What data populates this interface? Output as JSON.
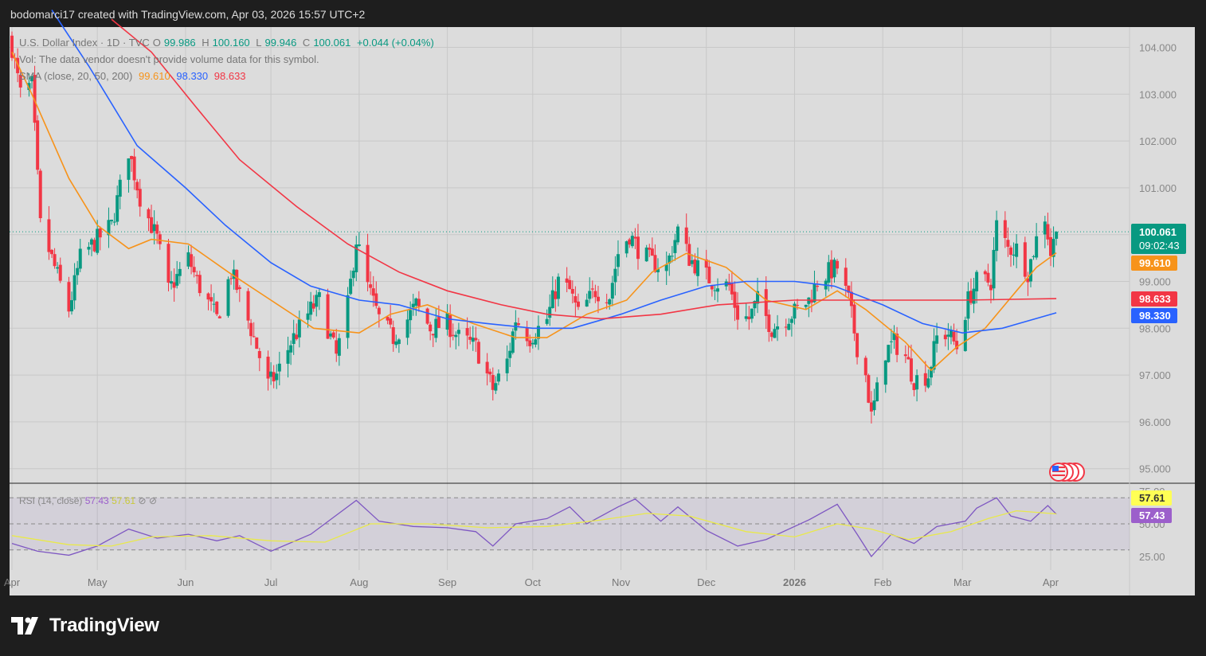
{
  "header": {
    "attribution": "bodomarci17 created with TradingView.com, Apr 03, 2026 15:57 UTC+2"
  },
  "legend": {
    "symbol": "U.S. Dollar Index · 1D · TVC",
    "o_label": "O",
    "o_value": "99.986",
    "h_label": "H",
    "h_value": "100.160",
    "l_label": "L",
    "l_value": "99.946",
    "c_label": "C",
    "c_value": "100.061",
    "change": "+0.044 (+0.04%)",
    "vol_text": "Vol: The data vendor doesn't provide volume data for this symbol.",
    "sma_label": "SMA (close, 20, 50, 200)",
    "sma20": "99.610",
    "sma50": "98.330",
    "sma200": "98.633"
  },
  "price_badges": {
    "last": "100.061",
    "countdown": "09:02:43",
    "sma20": "99.610",
    "sma200": "98.633",
    "sma50": "98.330"
  },
  "rsi_legend": {
    "label": "RSI (14, close)",
    "rsi": "57.43",
    "ma": "57.61",
    "extra": "⊘ ⊘"
  },
  "rsi_badges": {
    "ma": "57.61",
    "rsi": "57.43"
  },
  "footer": {
    "brand": "TradingView"
  },
  "colors": {
    "up": "#089981",
    "down": "#f23645",
    "sma20": "#f7931a",
    "sma50": "#2962ff",
    "sma200": "#f23645",
    "rsi": "#7e57c2",
    "rsi_ma": "#e9e94a",
    "bg": "#dcdcdc"
  },
  "chart_data": [
    {
      "type": "candlestick",
      "title": "U.S. Dollar Index · 1D · TVC",
      "xlabel": "",
      "ylabel": "",
      "ylim": [
        94.7,
        104.4
      ],
      "y_ticks": [
        "104.000",
        "103.000",
        "102.000",
        "101.000",
        "100.000",
        "99.000",
        "98.000",
        "97.000",
        "96.000",
        "95.000"
      ],
      "x_ticks": [
        "Apr",
        "May",
        "Jun",
        "Jul",
        "Aug",
        "Sep",
        "Oct",
        "Nov",
        "Dec",
        "2026",
        "Feb",
        "Mar",
        "Apr"
      ],
      "last_price": 100.061,
      "anchors_close": [
        [
          "2025-04-01",
          104.0
        ],
        [
          "2025-04-04",
          103.0
        ],
        [
          "2025-04-08",
          103.2
        ],
        [
          "2025-04-10",
          101.2
        ],
        [
          "2025-04-11",
          100.2
        ],
        [
          "2025-04-21",
          98.4
        ],
        [
          "2025-04-25",
          99.5
        ],
        [
          "2025-05-01",
          99.9
        ],
        [
          "2025-05-06",
          100.2
        ],
        [
          "2025-05-12",
          101.8
        ],
        [
          "2025-05-16",
          100.8
        ],
        [
          "2025-05-22",
          99.9
        ],
        [
          "2025-05-26",
          98.8
        ],
        [
          "2025-06-02",
          99.5
        ],
        [
          "2025-06-05",
          99.0
        ],
        [
          "2025-06-12",
          98.2
        ],
        [
          "2025-06-17",
          99.2
        ],
        [
          "2025-06-20",
          98.7
        ],
        [
          "2025-06-25",
          97.8
        ],
        [
          "2025-06-30",
          96.8
        ],
        [
          "2025-07-03",
          97.0
        ],
        [
          "2025-07-08",
          97.7
        ],
        [
          "2025-07-15",
          98.4
        ],
        [
          "2025-07-18",
          98.6
        ],
        [
          "2025-07-24",
          97.4
        ],
        [
          "2025-07-28",
          98.5
        ],
        [
          "2025-07-31",
          99.9
        ],
        [
          "2025-08-04",
          98.9
        ],
        [
          "2025-08-08",
          98.2
        ],
        [
          "2025-08-13",
          97.8
        ],
        [
          "2025-08-18",
          98.2
        ],
        [
          "2025-08-21",
          98.5
        ],
        [
          "2025-08-26",
          98.0
        ],
        [
          "2025-09-01",
          98.1
        ],
        [
          "2025-09-05",
          97.8
        ],
        [
          "2025-09-11",
          97.6
        ],
        [
          "2025-09-17",
          96.7
        ],
        [
          "2025-09-22",
          97.3
        ],
        [
          "2025-09-25",
          98.2
        ],
        [
          "2025-09-30",
          97.8
        ],
        [
          "2025-10-06",
          98.2
        ],
        [
          "2025-10-10",
          99.0
        ],
        [
          "2025-10-14",
          98.8
        ],
        [
          "2025-10-17",
          98.3
        ],
        [
          "2025-10-23",
          98.8
        ],
        [
          "2025-10-28",
          98.7
        ],
        [
          "2025-10-31",
          99.6
        ],
        [
          "2025-11-04",
          100.0
        ],
        [
          "2025-11-07",
          99.7
        ],
        [
          "2025-11-12",
          99.4
        ],
        [
          "2025-11-17",
          99.3
        ],
        [
          "2025-11-21",
          100.1
        ],
        [
          "2025-11-25",
          99.5
        ],
        [
          "2025-11-28",
          99.3
        ],
        [
          "2025-12-03",
          99.0
        ],
        [
          "2025-12-09",
          98.9
        ],
        [
          "2025-12-12",
          98.3
        ],
        [
          "2025-12-16",
          98.2
        ],
        [
          "2025-12-19",
          98.6
        ],
        [
          "2025-12-24",
          98.0
        ],
        [
          "2025-12-31",
          98.3
        ],
        [
          "2026-01-06",
          98.6
        ],
        [
          "2026-01-09",
          99.0
        ],
        [
          "2026-01-13",
          99.2
        ],
        [
          "2026-01-16",
          99.3
        ],
        [
          "2026-01-20",
          98.6
        ],
        [
          "2026-01-23",
          97.6
        ],
        [
          "2026-01-26",
          97.0
        ],
        [
          "2026-01-28",
          96.1
        ],
        [
          "2026-02-02",
          97.5
        ],
        [
          "2026-02-05",
          97.7
        ],
        [
          "2026-02-09",
          97.4
        ],
        [
          "2026-02-12",
          96.9
        ],
        [
          "2026-02-17",
          97.0
        ],
        [
          "2026-02-20",
          97.8
        ],
        [
          "2026-02-24",
          97.9
        ],
        [
          "2026-02-27",
          97.6
        ],
        [
          "2026-03-03",
          98.6
        ],
        [
          "2026-03-06",
          99.0
        ],
        [
          "2026-03-11",
          99.0
        ],
        [
          "2026-03-13",
          100.2
        ],
        [
          "2026-03-17",
          99.7
        ],
        [
          "2026-03-20",
          99.7
        ],
        [
          "2026-03-24",
          99.2
        ],
        [
          "2026-03-27",
          99.9
        ],
        [
          "2026-03-30",
          100.4
        ],
        [
          "2026-04-01",
          99.6
        ],
        [
          "2026-04-03",
          100.061
        ]
      ],
      "sma_lines": [
        {
          "name": "SMA 20",
          "color": "#f7931a",
          "points": [
            [
              "2025-04-01",
              103.9
            ],
            [
              "2025-04-08",
              103.0
            ],
            [
              "2025-04-21",
              101.2
            ],
            [
              "2025-05-01",
              100.2
            ],
            [
              "2025-05-12",
              99.7
            ],
            [
              "2025-05-20",
              99.9
            ],
            [
              "2025-06-02",
              99.8
            ],
            [
              "2025-06-16",
              99.2
            ],
            [
              "2025-07-01",
              98.6
            ],
            [
              "2025-07-16",
              98.0
            ],
            [
              "2025-08-01",
              97.9
            ],
            [
              "2025-08-12",
              98.3
            ],
            [
              "2025-08-25",
              98.5
            ],
            [
              "2025-09-10",
              98.1
            ],
            [
              "2025-09-25",
              97.8
            ],
            [
              "2025-10-06",
              97.8
            ],
            [
              "2025-10-20",
              98.3
            ],
            [
              "2025-11-03",
              98.6
            ],
            [
              "2025-11-12",
              99.2
            ],
            [
              "2025-11-24",
              99.6
            ],
            [
              "2025-12-08",
              99.3
            ],
            [
              "2025-12-22",
              98.6
            ],
            [
              "2026-01-05",
              98.4
            ],
            [
              "2026-01-16",
              98.8
            ],
            [
              "2026-01-26",
              98.4
            ],
            [
              "2026-02-09",
              97.7
            ],
            [
              "2026-02-18",
              97.1
            ],
            [
              "2026-02-27",
              97.6
            ],
            [
              "2026-03-09",
              98.0
            ],
            [
              "2026-03-20",
              98.8
            ],
            [
              "2026-03-27",
              99.3
            ],
            [
              "2026-04-03",
              99.61
            ]
          ]
        },
        {
          "name": "SMA 50",
          "color": "#2962ff",
          "points": [
            [
              "2025-04-15",
              104.8
            ],
            [
              "2025-04-28",
              103.6
            ],
            [
              "2025-05-15",
              101.9
            ],
            [
              "2025-06-01",
              101.0
            ],
            [
              "2025-06-15",
              100.2
            ],
            [
              "2025-07-01",
              99.4
            ],
            [
              "2025-07-15",
              98.9
            ],
            [
              "2025-08-01",
              98.6
            ],
            [
              "2025-08-15",
              98.5
            ],
            [
              "2025-09-01",
              98.2
            ],
            [
              "2025-09-15",
              98.1
            ],
            [
              "2025-10-01",
              98.0
            ],
            [
              "2025-10-15",
              98.0
            ],
            [
              "2025-11-01",
              98.3
            ],
            [
              "2025-11-15",
              98.6
            ],
            [
              "2025-12-01",
              98.9
            ],
            [
              "2025-12-15",
              99.0
            ],
            [
              "2026-01-01",
              99.0
            ],
            [
              "2026-01-15",
              98.9
            ],
            [
              "2026-02-01",
              98.5
            ],
            [
              "2026-02-15",
              98.1
            ],
            [
              "2026-03-01",
              97.9
            ],
            [
              "2026-03-15",
              98.0
            ],
            [
              "2026-04-03",
              98.33
            ]
          ]
        },
        {
          "name": "SMA 200",
          "color": "#f23645",
          "points": [
            [
              "2025-05-06",
              104.6
            ],
            [
              "2025-05-20",
              103.9
            ],
            [
              "2025-06-05",
              102.7
            ],
            [
              "2025-06-20",
              101.6
            ],
            [
              "2025-07-10",
              100.6
            ],
            [
              "2025-07-28",
              99.8
            ],
            [
              "2025-08-15",
              99.2
            ],
            [
              "2025-09-01",
              98.8
            ],
            [
              "2025-09-20",
              98.5
            ],
            [
              "2025-10-06",
              98.3
            ],
            [
              "2025-10-25",
              98.2
            ],
            [
              "2025-11-15",
              98.3
            ],
            [
              "2025-12-05",
              98.5
            ],
            [
              "2026-01-01",
              98.6
            ],
            [
              "2026-02-01",
              98.6
            ],
            [
              "2026-03-01",
              98.6
            ],
            [
              "2026-04-03",
              98.633
            ]
          ]
        }
      ]
    },
    {
      "type": "line",
      "title": "RSI (14, close)",
      "ylim": [
        25,
        75
      ],
      "y_ticks": [
        "75.00",
        "50.00",
        "25.00"
      ],
      "bands": [
        70,
        30
      ],
      "series": [
        {
          "name": "RSI",
          "color": "#7e57c2",
          "points": [
            [
              "2025-04-01",
              35
            ],
            [
              "2025-04-10",
              29
            ],
            [
              "2025-04-21",
              26
            ],
            [
              "2025-05-01",
              33
            ],
            [
              "2025-05-12",
              46
            ],
            [
              "2025-05-22",
              39
            ],
            [
              "2025-06-02",
              42
            ],
            [
              "2025-06-12",
              37
            ],
            [
              "2025-06-20",
              41
            ],
            [
              "2025-07-01",
              29
            ],
            [
              "2025-07-15",
              42
            ],
            [
              "2025-07-31",
              68
            ],
            [
              "2025-08-08",
              52
            ],
            [
              "2025-08-20",
              48
            ],
            [
              "2025-09-01",
              47
            ],
            [
              "2025-09-11",
              44
            ],
            [
              "2025-09-17",
              33
            ],
            [
              "2025-09-25",
              50
            ],
            [
              "2025-10-06",
              54
            ],
            [
              "2025-10-14",
              63
            ],
            [
              "2025-10-20",
              50
            ],
            [
              "2025-10-31",
              63
            ],
            [
              "2025-11-06",
              69
            ],
            [
              "2025-11-15",
              52
            ],
            [
              "2025-11-21",
              63
            ],
            [
              "2025-12-01",
              45
            ],
            [
              "2025-12-12",
              33
            ],
            [
              "2025-12-22",
              38
            ],
            [
              "2026-01-06",
              53
            ],
            [
              "2026-01-16",
              65
            ],
            [
              "2026-01-23",
              42
            ],
            [
              "2026-01-28",
              25
            ],
            [
              "2026-02-04",
              42
            ],
            [
              "2026-02-12",
              35
            ],
            [
              "2026-02-20",
              48
            ],
            [
              "2026-03-02",
              52
            ],
            [
              "2026-03-06",
              62
            ],
            [
              "2026-03-13",
              70
            ],
            [
              "2026-03-18",
              56
            ],
            [
              "2026-03-25",
              52
            ],
            [
              "2026-03-31",
              64
            ],
            [
              "2026-04-03",
              57.43
            ]
          ]
        },
        {
          "name": "RSI MA",
          "color": "#e9e94a",
          "points": [
            [
              "2025-04-01",
              41
            ],
            [
              "2025-04-21",
              34
            ],
            [
              "2025-05-06",
              33
            ],
            [
              "2025-05-20",
              40
            ],
            [
              "2025-06-10",
              41
            ],
            [
              "2025-07-01",
              37
            ],
            [
              "2025-07-20",
              36
            ],
            [
              "2025-08-05",
              50
            ],
            [
              "2025-08-25",
              50
            ],
            [
              "2025-09-15",
              47
            ],
            [
              "2025-10-06",
              48
            ],
            [
              "2025-10-25",
              53
            ],
            [
              "2025-11-10",
              58
            ],
            [
              "2025-11-25",
              56
            ],
            [
              "2025-12-15",
              44
            ],
            [
              "2026-01-01",
              40
            ],
            [
              "2026-01-16",
              50
            ],
            [
              "2026-01-28",
              46
            ],
            [
              "2026-02-10",
              38
            ],
            [
              "2026-02-25",
              44
            ],
            [
              "2026-03-10",
              54
            ],
            [
              "2026-03-20",
              60
            ],
            [
              "2026-04-03",
              57.61
            ]
          ]
        }
      ]
    }
  ]
}
